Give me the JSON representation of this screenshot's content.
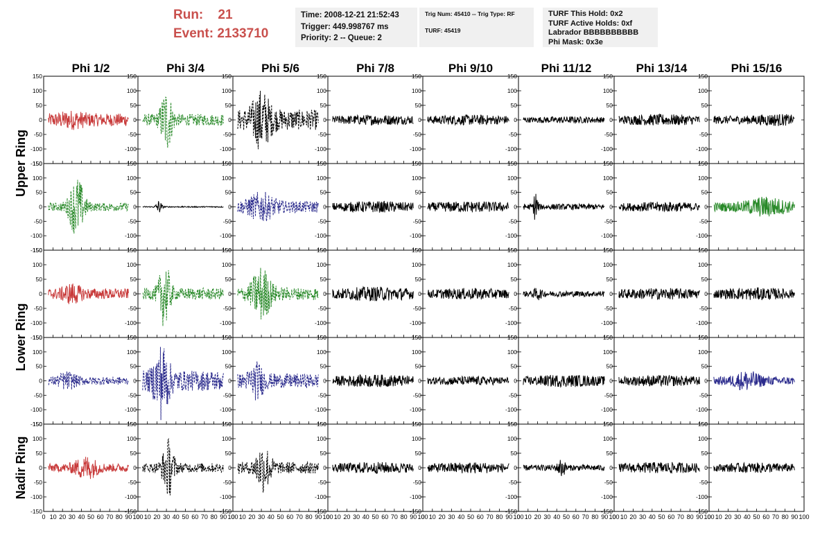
{
  "header": {
    "run_label": "Run:",
    "run_value": "21",
    "event_label": "Event:",
    "event_value": "2133710",
    "time": "Time: 2008-12-21 21:52:43",
    "trigger": "Trigger: 449.998767 ms",
    "priority": "Priority: 2 -- Queue: 2",
    "trig_num": "Trig Num: 45410 -- Trig Type: RF",
    "turf": "TURF: 45419",
    "turf_hold": "TURF This Hold: 0x2",
    "turf_active": "TURF Active Holds: 0xf",
    "labrador": "Labrador BBBBBBBBBB",
    "phi_mask": "Phi Mask: 0x3e"
  },
  "chart_data": {
    "type": "line",
    "columns": [
      "Phi 1/2",
      "Phi 3/4",
      "Phi 5/6",
      "Phi 7/8",
      "Phi 9/10",
      "Phi 11/12",
      "Phi 13/14",
      "Phi 15/16"
    ],
    "row_labels": [
      {
        "text": "Upper Ring",
        "rows": [
          0,
          1
        ]
      },
      {
        "text": "Lower Ring",
        "rows": [
          2,
          3
        ]
      },
      {
        "text": "Nadir Ring",
        "rows": [
          4
        ]
      }
    ],
    "xlim": [
      0,
      100
    ],
    "ylim": [
      -150,
      150
    ],
    "yticks": [
      -150,
      -100,
      -50,
      0,
      50,
      100,
      150
    ],
    "xticks": [
      0,
      10,
      20,
      30,
      40,
      50,
      60,
      70,
      80,
      90,
      100
    ],
    "colors": {
      "red": "#c83a3a",
      "green": "#2a8a2a",
      "blue": "#2a2a8c",
      "black": "#000000"
    },
    "panels": [
      [
        {
          "color": "red",
          "dash": false,
          "amp": 22,
          "peak": 35,
          "pos": 30,
          "width": 14
        },
        {
          "color": "green",
          "dash": true,
          "amp": 20,
          "peak": 120,
          "pos": 30,
          "width": 6
        },
        {
          "color": "black",
          "dash": true,
          "amp": 35,
          "peak": 110,
          "pos": 30,
          "width": 10
        },
        {
          "color": "black",
          "dash": false,
          "amp": 12,
          "peak": 18,
          "pos": 50,
          "width": 40
        },
        {
          "color": "black",
          "dash": false,
          "amp": 12,
          "peak": 18,
          "pos": 50,
          "width": 40
        },
        {
          "color": "black",
          "dash": false,
          "amp": 8,
          "peak": 12,
          "pos": 50,
          "width": 40
        },
        {
          "color": "black",
          "dash": false,
          "amp": 12,
          "peak": 20,
          "pos": 50,
          "width": 40
        },
        {
          "color": "black",
          "dash": false,
          "amp": 14,
          "peak": 22,
          "pos": 70,
          "width": 20
        }
      ],
      [
        {
          "color": "green",
          "dash": true,
          "amp": 14,
          "peak": 110,
          "pos": 35,
          "width": 8
        },
        {
          "color": "black",
          "dash": false,
          "amp": 2,
          "peak": 25,
          "pos": 22,
          "width": 3
        },
        {
          "color": "blue",
          "dash": true,
          "amp": 20,
          "peak": 55,
          "pos": 30,
          "width": 14
        },
        {
          "color": "black",
          "dash": false,
          "amp": 12,
          "peak": 20,
          "pos": 50,
          "width": 40
        },
        {
          "color": "black",
          "dash": false,
          "amp": 12,
          "peak": 20,
          "pos": 50,
          "width": 40
        },
        {
          "color": "black",
          "dash": false,
          "amp": 10,
          "peak": 70,
          "pos": 18,
          "width": 2
        },
        {
          "color": "black",
          "dash": false,
          "amp": 10,
          "peak": 18,
          "pos": 50,
          "width": 40
        },
        {
          "color": "green",
          "dash": false,
          "amp": 16,
          "peak": 38,
          "pos": 60,
          "width": 20
        }
      ],
      [
        {
          "color": "red",
          "dash": false,
          "amp": 18,
          "peak": 40,
          "pos": 30,
          "width": 10
        },
        {
          "color": "green",
          "dash": true,
          "amp": 20,
          "peak": 120,
          "pos": 28,
          "width": 6
        },
        {
          "color": "green",
          "dash": true,
          "amp": 22,
          "peak": 100,
          "pos": 30,
          "width": 10
        },
        {
          "color": "black",
          "dash": false,
          "amp": 14,
          "peak": 25,
          "pos": 50,
          "width": 40
        },
        {
          "color": "black",
          "dash": false,
          "amp": 12,
          "peak": 20,
          "pos": 50,
          "width": 40
        },
        {
          "color": "black",
          "dash": false,
          "amp": 10,
          "peak": 25,
          "pos": 20,
          "width": 4
        },
        {
          "color": "black",
          "dash": false,
          "amp": 14,
          "peak": 20,
          "pos": 50,
          "width": 40
        },
        {
          "color": "black",
          "dash": false,
          "amp": 12,
          "peak": 22,
          "pos": 50,
          "width": 40
        }
      ],
      [
        {
          "color": "blue",
          "dash": true,
          "amp": 14,
          "peak": 35,
          "pos": 25,
          "width": 10
        },
        {
          "color": "blue",
          "dash": true,
          "amp": 35,
          "peak": 140,
          "pos": 25,
          "width": 8
        },
        {
          "color": "blue",
          "dash": true,
          "amp": 25,
          "peak": 70,
          "pos": 25,
          "width": 8
        },
        {
          "color": "black",
          "dash": false,
          "amp": 14,
          "peak": 22,
          "pos": 50,
          "width": 40
        },
        {
          "color": "black",
          "dash": false,
          "amp": 10,
          "peak": 16,
          "pos": 50,
          "width": 40
        },
        {
          "color": "black",
          "dash": false,
          "amp": 12,
          "peak": 22,
          "pos": 50,
          "width": 40
        },
        {
          "color": "black",
          "dash": false,
          "amp": 12,
          "peak": 20,
          "pos": 50,
          "width": 40
        },
        {
          "color": "blue",
          "dash": false,
          "amp": 14,
          "peak": 38,
          "pos": 40,
          "width": 14
        }
      ],
      [
        {
          "color": "red",
          "dash": false,
          "amp": 14,
          "peak": 45,
          "pos": 45,
          "width": 12
        },
        {
          "color": "black",
          "dash": true,
          "amp": 16,
          "peak": 105,
          "pos": 32,
          "width": 6
        },
        {
          "color": "black",
          "dash": true,
          "amp": 20,
          "peak": 90,
          "pos": 32,
          "width": 8
        },
        {
          "color": "black",
          "dash": false,
          "amp": 12,
          "peak": 20,
          "pos": 50,
          "width": 40
        },
        {
          "color": "black",
          "dash": false,
          "amp": 12,
          "peak": 20,
          "pos": 50,
          "width": 40
        },
        {
          "color": "black",
          "dash": false,
          "amp": 10,
          "peak": 35,
          "pos": 45,
          "width": 4
        },
        {
          "color": "black",
          "dash": false,
          "amp": 12,
          "peak": 20,
          "pos": 50,
          "width": 40
        },
        {
          "color": "black",
          "dash": false,
          "amp": 10,
          "peak": 18,
          "pos": 50,
          "width": 40
        }
      ]
    ]
  }
}
